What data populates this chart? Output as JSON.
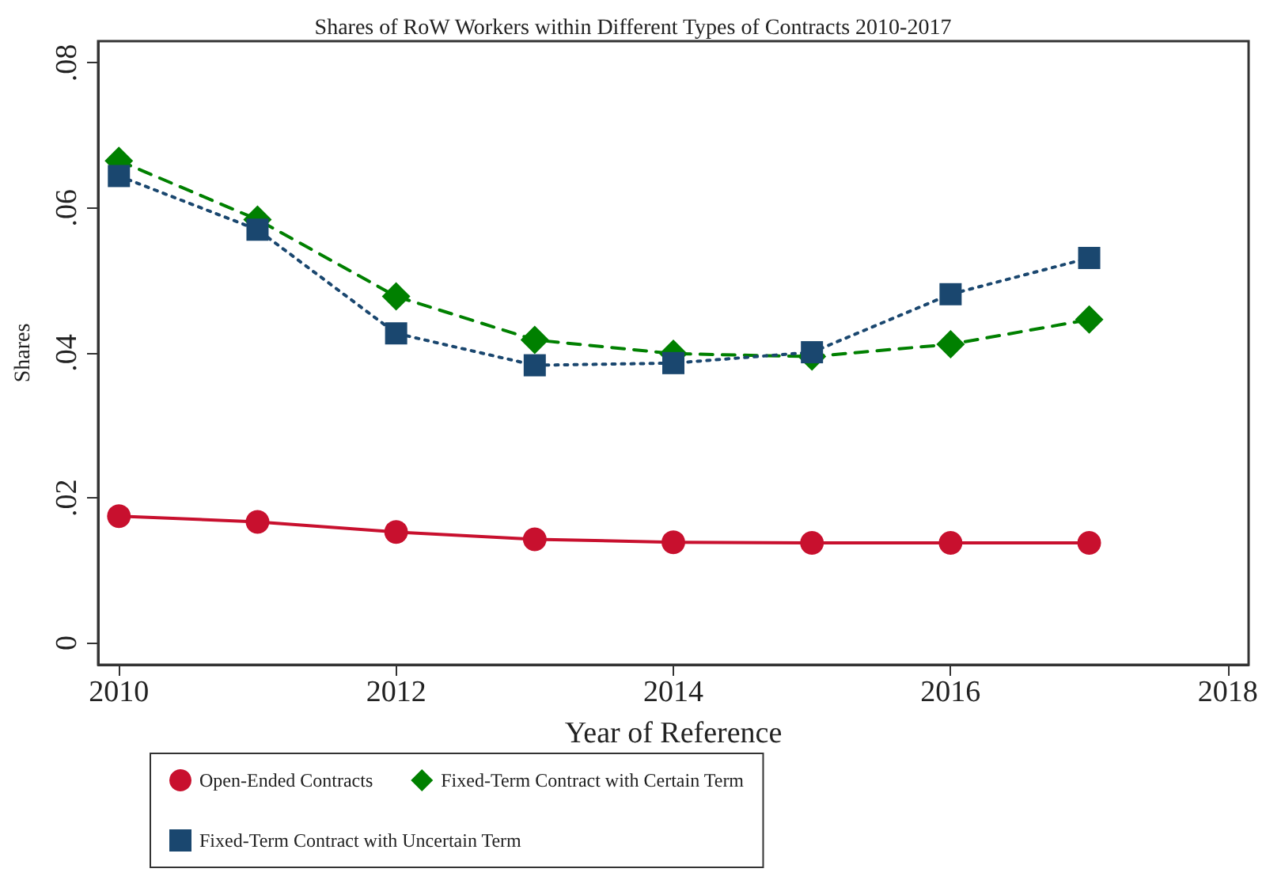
{
  "chart_data": {
    "type": "line",
    "title": "Shares of RoW Workers within Different Types of Contracts 2010-2017",
    "xlabel": "Year of Reference",
    "ylabel": "Shares",
    "x": [
      2010,
      2011,
      2012,
      2013,
      2014,
      2015,
      2016,
      2017
    ],
    "series": [
      {
        "name": "Open-Ended Contracts",
        "color": "#c8102e",
        "marker": "circle",
        "line_style": "solid",
        "values": [
          0.0175,
          0.0167,
          0.0153,
          0.0143,
          0.0139,
          0.0138,
          0.0138,
          0.0138
        ]
      },
      {
        "name": "Fixed-Term Contract with Certain Term",
        "color": "#008000",
        "marker": "diamond",
        "line_style": "dashed",
        "values": [
          0.0665,
          0.0584,
          0.0478,
          0.0418,
          0.0399,
          0.0395,
          0.0412,
          0.0446
        ]
      },
      {
        "name": "Fixed-Term Contract with Uncertain Term",
        "color": "#1a476f",
        "marker": "square",
        "line_style": "dotted",
        "values": [
          0.0644,
          0.057,
          0.0427,
          0.0383,
          0.0386,
          0.0401,
          0.0481,
          0.0531
        ]
      }
    ],
    "xlim": [
      2009.85,
      2018.15
    ],
    "xticks": [
      2010,
      2012,
      2014,
      2016,
      2018
    ],
    "ylim": [
      -0.003,
      0.083
    ],
    "yticks": [
      {
        "value": 0,
        "label": "0"
      },
      {
        "value": 0.02,
        "label": ".02"
      },
      {
        "value": 0.04,
        "label": ".04"
      },
      {
        "value": 0.06,
        "label": ".06"
      },
      {
        "value": 0.08,
        "label": ".08"
      }
    ],
    "grid": false,
    "legend": "bottom"
  }
}
